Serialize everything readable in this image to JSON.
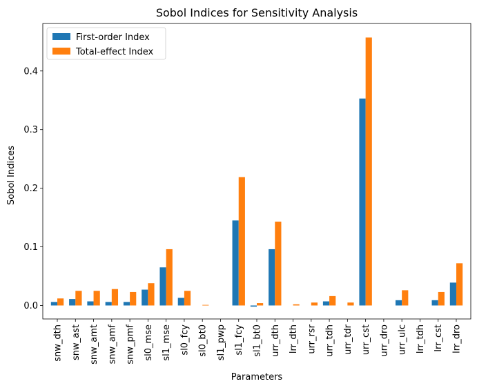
{
  "chart_data": {
    "type": "bar",
    "title": "Sobol Indices for Sensitivity Analysis",
    "xlabel": "Parameters",
    "ylabel": "Sobol Indices",
    "categories": [
      "snw_dth",
      "snw_ast",
      "snw_amt",
      "snw_amf",
      "snw_pmf",
      "sl0_mse",
      "sl1_mse",
      "sl0_fcy",
      "sl0_bt0",
      "sl1_pwp",
      "sl1_fcy",
      "sl1_bt0",
      "urr_dth",
      "lrr_dth",
      "urr_rsr",
      "urr_tdh",
      "urr_tdr",
      "urr_cst",
      "urr_dro",
      "urr_ulc",
      "lrr_tdh",
      "lrr_cst",
      "lrr_dro"
    ],
    "series": [
      {
        "name": "First-order Index",
        "color": "#1f77b4",
        "values": [
          0.006,
          0.011,
          0.007,
          0.006,
          0.006,
          0.027,
          0.065,
          0.013,
          0.0,
          0.0,
          0.145,
          -0.002,
          0.096,
          0.0,
          0.0,
          0.007,
          0.0,
          0.353,
          0.0,
          0.009,
          0.0,
          0.009,
          0.039
        ]
      },
      {
        "name": "Total-effect Index",
        "color": "#ff7f0e",
        "values": [
          0.012,
          0.025,
          0.025,
          0.028,
          0.023,
          0.038,
          0.096,
          0.025,
          0.001,
          0.0,
          0.219,
          0.004,
          0.143,
          0.002,
          0.005,
          0.016,
          0.005,
          0.457,
          0.0,
          0.026,
          0.0,
          0.023,
          0.072
        ]
      }
    ],
    "ylim": [
      -0.023,
      0.481
    ],
    "yticks": [
      0.0,
      0.1,
      0.2,
      0.3,
      0.4
    ],
    "ytick_labels": [
      "0.0",
      "0.1",
      "0.2",
      "0.3",
      "0.4"
    ],
    "grid": false,
    "legend_position": "top-left"
  }
}
